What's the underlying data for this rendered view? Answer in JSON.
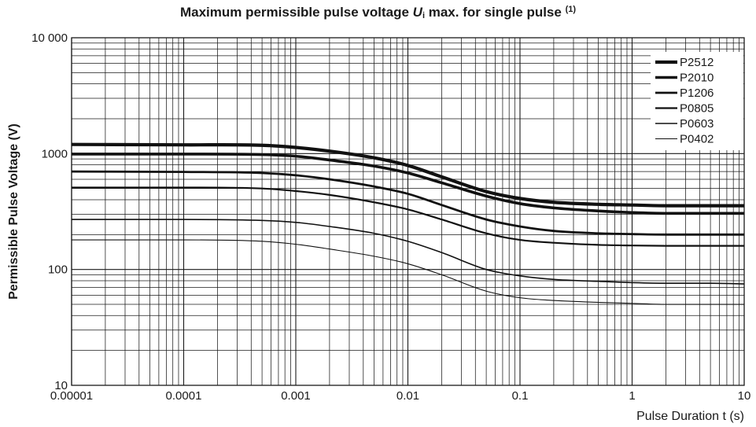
{
  "title": {
    "prefix": "Maximum permissible pulse voltage ",
    "symbol": "U",
    "subscript": "i",
    "suffix": " max. for single pulse ",
    "footnote": "(1)"
  },
  "chart_data": {
    "type": "line",
    "xlabel": "Pulse Duration t (s)",
    "ylabel": "Permissible Pulse Voltage (V)",
    "xscale": "log",
    "yscale": "log",
    "xlim": [
      1e-05,
      10
    ],
    "ylim": [
      10,
      10000
    ],
    "grid": true,
    "x_tick_labels": [
      "0.00001",
      "0.0001",
      "0.001",
      "0.01",
      "0.1",
      "1",
      "10"
    ],
    "y_tick_labels": [
      "10",
      "100",
      "1000",
      "10 000"
    ],
    "legend_position": "top-right",
    "series": [
      {
        "name": "P2512",
        "weight": 4.2,
        "x": [
          1e-05,
          0.0001,
          0.0005,
          0.001,
          0.002,
          0.005,
          0.01,
          0.02,
          0.05,
          0.1,
          0.2,
          0.5,
          1,
          2,
          5,
          10
        ],
        "y": [
          1200,
          1190,
          1180,
          1130,
          1050,
          920,
          790,
          630,
          470,
          410,
          380,
          365,
          360,
          355,
          355,
          355
        ]
      },
      {
        "name": "P2010",
        "weight": 3.6,
        "x": [
          1e-05,
          0.0001,
          0.0005,
          0.001,
          0.002,
          0.005,
          0.01,
          0.02,
          0.05,
          0.1,
          0.2,
          0.5,
          1,
          2,
          5,
          10
        ],
        "y": [
          990,
          990,
          980,
          950,
          880,
          780,
          680,
          560,
          430,
          370,
          340,
          320,
          310,
          305,
          305,
          305
        ]
      },
      {
        "name": "P1206",
        "weight": 2.8,
        "x": [
          1e-05,
          0.0001,
          0.0005,
          0.001,
          0.002,
          0.005,
          0.01,
          0.02,
          0.05,
          0.1,
          0.2,
          0.5,
          1,
          2,
          5,
          10
        ],
        "y": [
          700,
          695,
          680,
          650,
          600,
          520,
          450,
          360,
          270,
          235,
          215,
          205,
          202,
          200,
          200,
          200
        ]
      },
      {
        "name": "P0805",
        "weight": 2.2,
        "x": [
          1e-05,
          0.0001,
          0.0005,
          0.001,
          0.002,
          0.005,
          0.01,
          0.02,
          0.05,
          0.1,
          0.2,
          0.5,
          1,
          2,
          5,
          10
        ],
        "y": [
          510,
          510,
          500,
          475,
          440,
          380,
          330,
          270,
          205,
          180,
          170,
          163,
          161,
          160,
          160,
          160
        ]
      },
      {
        "name": "P0603",
        "weight": 1.6,
        "x": [
          1e-05,
          0.0001,
          0.0005,
          0.001,
          0.002,
          0.005,
          0.01,
          0.02,
          0.05,
          0.1,
          0.2,
          0.5,
          1,
          2,
          5,
          10
        ],
        "y": [
          270,
          270,
          265,
          255,
          235,
          205,
          175,
          140,
          100,
          88,
          82,
          79,
          77,
          76,
          76,
          75
        ]
      },
      {
        "name": "P0402",
        "weight": 1.1,
        "x": [
          1e-05,
          0.0001,
          0.0005,
          0.001,
          0.002,
          0.005,
          0.01,
          0.02,
          0.05,
          0.1,
          0.2,
          0.5,
          1,
          2,
          5,
          10
        ],
        "y": [
          180,
          180,
          175,
          165,
          150,
          130,
          112,
          90,
          65,
          57,
          54,
          52,
          51,
          50,
          50,
          50
        ]
      }
    ]
  }
}
